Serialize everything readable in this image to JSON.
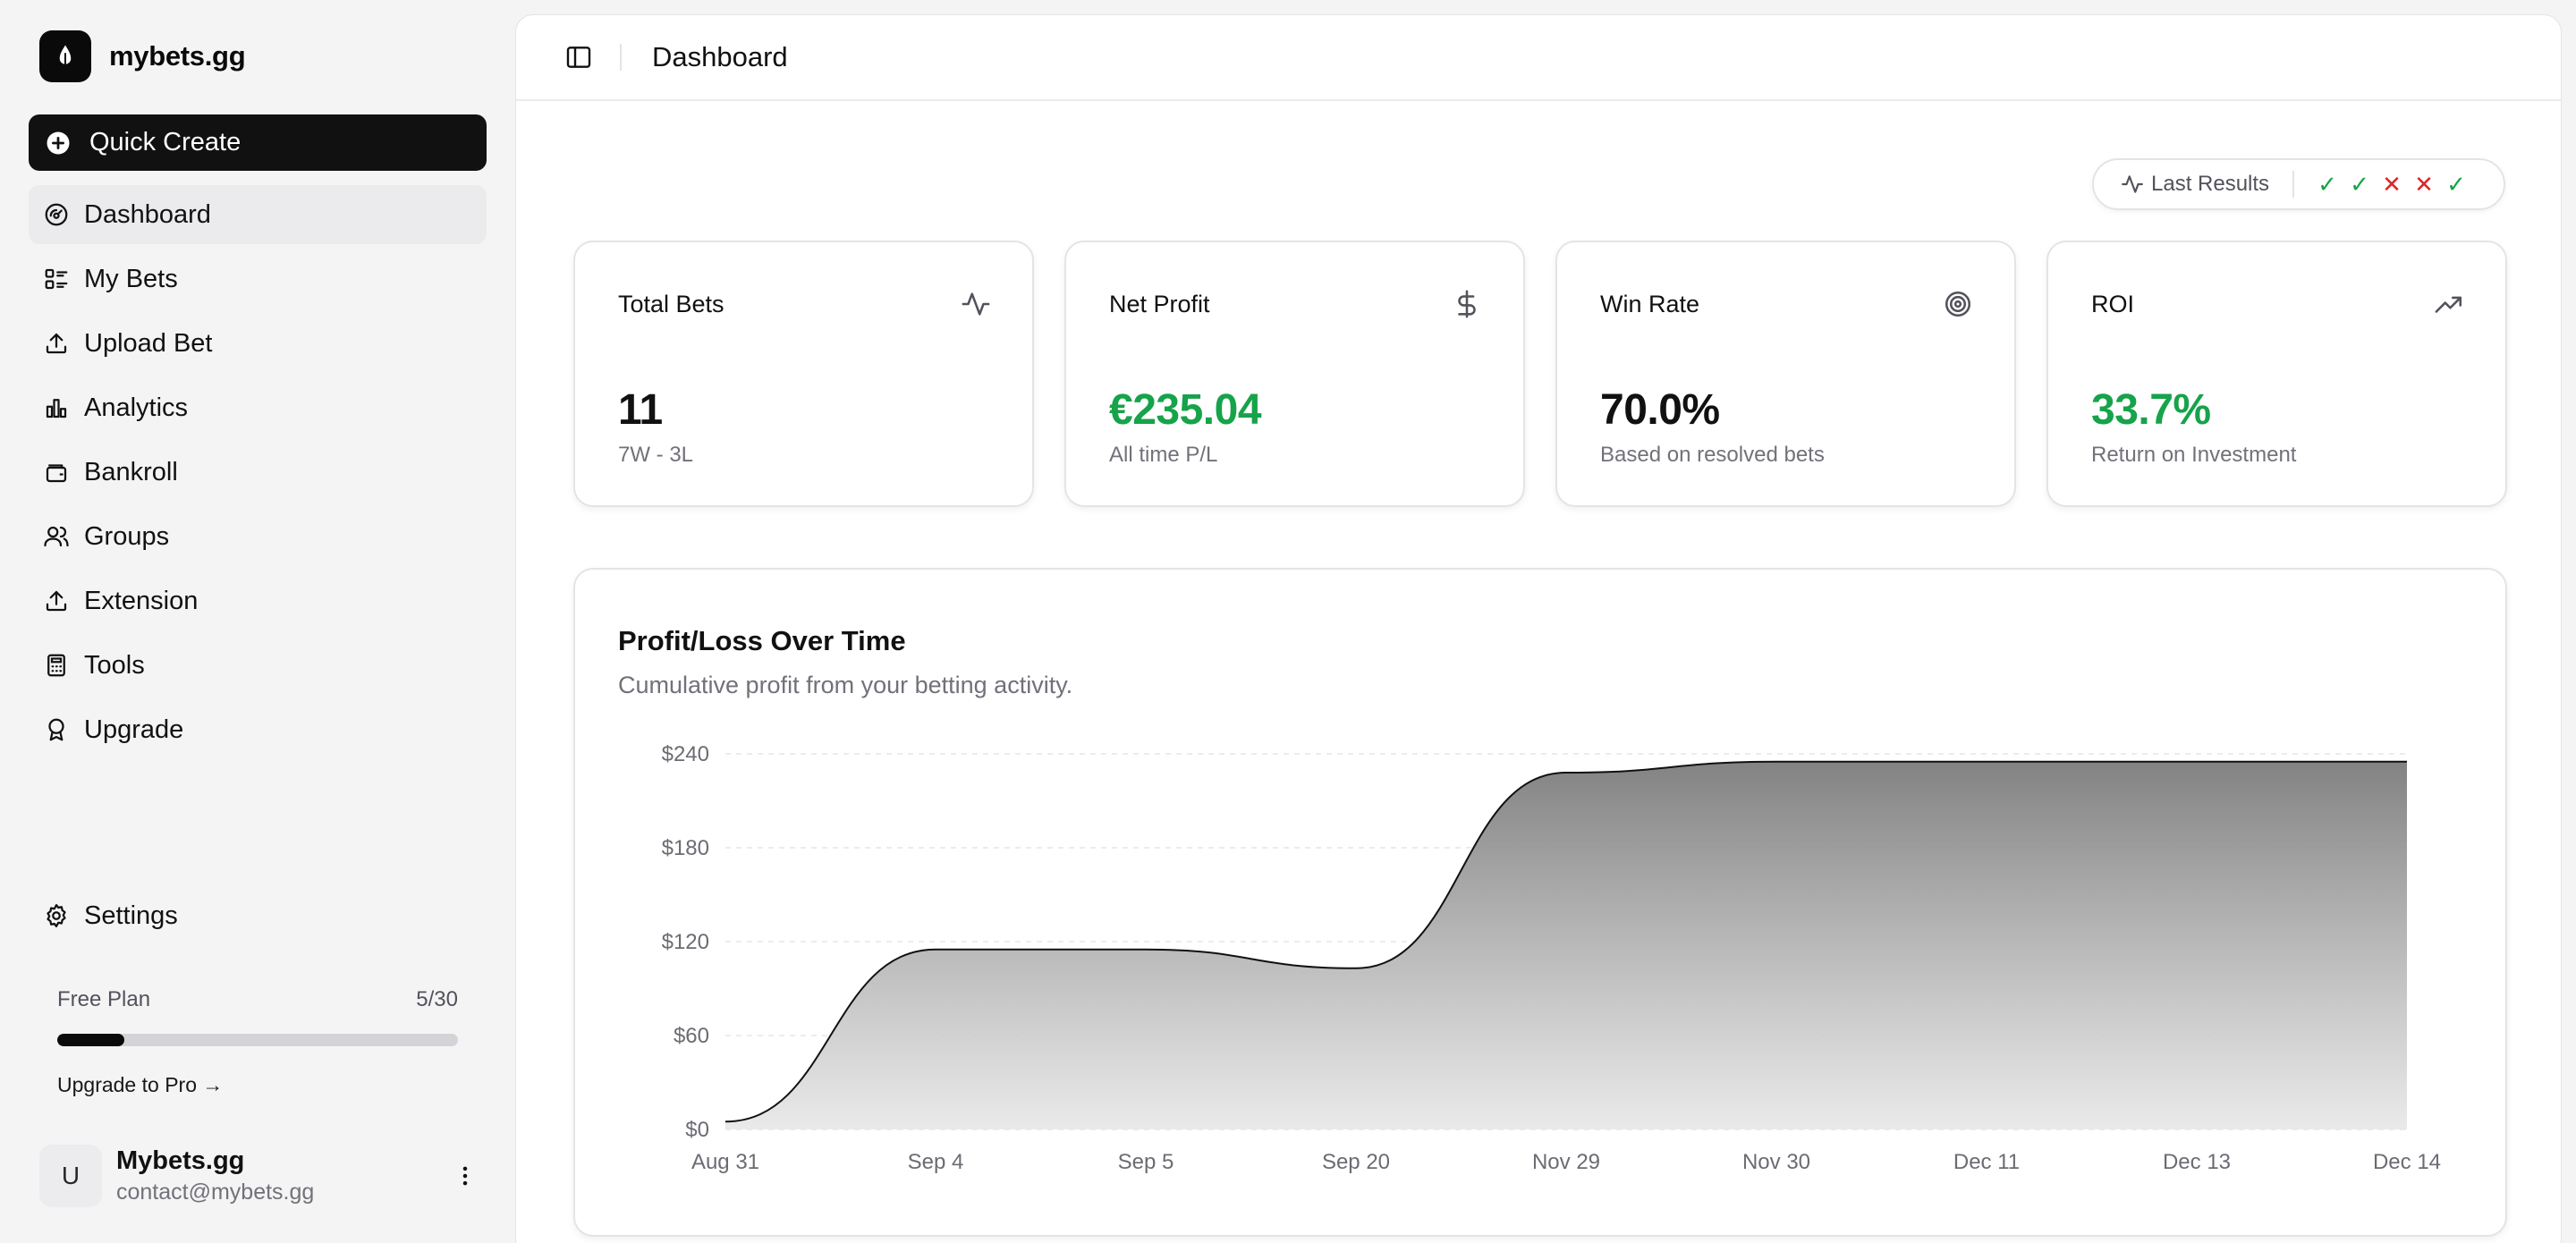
{
  "brand": {
    "name": "mybets.gg"
  },
  "quick_create": {
    "label": "Quick Create"
  },
  "nav": [
    {
      "label": "Dashboard",
      "icon": "dashboard-icon",
      "active": true
    },
    {
      "label": "My Bets",
      "icon": "list-icon",
      "active": false
    },
    {
      "label": "Upload Bet",
      "icon": "upload-icon",
      "active": false
    },
    {
      "label": "Analytics",
      "icon": "bar-chart-icon",
      "active": false
    },
    {
      "label": "Bankroll",
      "icon": "wallet-icon",
      "active": false
    },
    {
      "label": "Groups",
      "icon": "users-icon",
      "active": false
    },
    {
      "label": "Extension",
      "icon": "upload-icon",
      "active": false
    },
    {
      "label": "Tools",
      "icon": "calculator-icon",
      "active": false
    },
    {
      "label": "Upgrade",
      "icon": "award-icon",
      "active": false
    }
  ],
  "settings": {
    "label": "Settings"
  },
  "plan": {
    "name": "Free Plan",
    "usage": "5/30",
    "used": 5,
    "limit": 30,
    "upgrade_label": "Upgrade to Pro →"
  },
  "user": {
    "initial": "U",
    "name": "Mybets.gg",
    "email": "contact@mybets.gg"
  },
  "header": {
    "title": "Dashboard"
  },
  "last_results": {
    "label": "Last Results",
    "results": [
      "win",
      "win",
      "loss",
      "loss",
      "win"
    ]
  },
  "stats": {
    "total_bets": {
      "title": "Total Bets",
      "value": "11",
      "sub": "7W - 3L"
    },
    "net_profit": {
      "title": "Net Profit",
      "value": "€235.04",
      "sub": "All time P/L"
    },
    "win_rate": {
      "title": "Win Rate",
      "value": "70.0%",
      "sub": "Based on resolved bets"
    },
    "roi": {
      "title": "ROI",
      "value": "33.7%",
      "sub": "Return on Investment"
    }
  },
  "colors": {
    "positive": "#16a34a",
    "negative": "#dc2626",
    "primary": "#111111"
  },
  "chart_data": {
    "type": "area",
    "title": "Profit/Loss Over Time",
    "subtitle": "Cumulative profit from your betting activity.",
    "categories": [
      "Aug 31",
      "Sep 4",
      "Sep 5",
      "Sep 20",
      "Nov 29",
      "Nov 30",
      "Dec 11",
      "Dec 13",
      "Dec 14"
    ],
    "values": [
      5,
      115,
      115,
      103,
      228,
      235,
      235,
      235,
      235
    ],
    "y_ticks": [
      "$0",
      "$60",
      "$120",
      "$180",
      "$240"
    ],
    "ylim": [
      0,
      240
    ],
    "grid": true,
    "xlabel": "",
    "ylabel": ""
  }
}
